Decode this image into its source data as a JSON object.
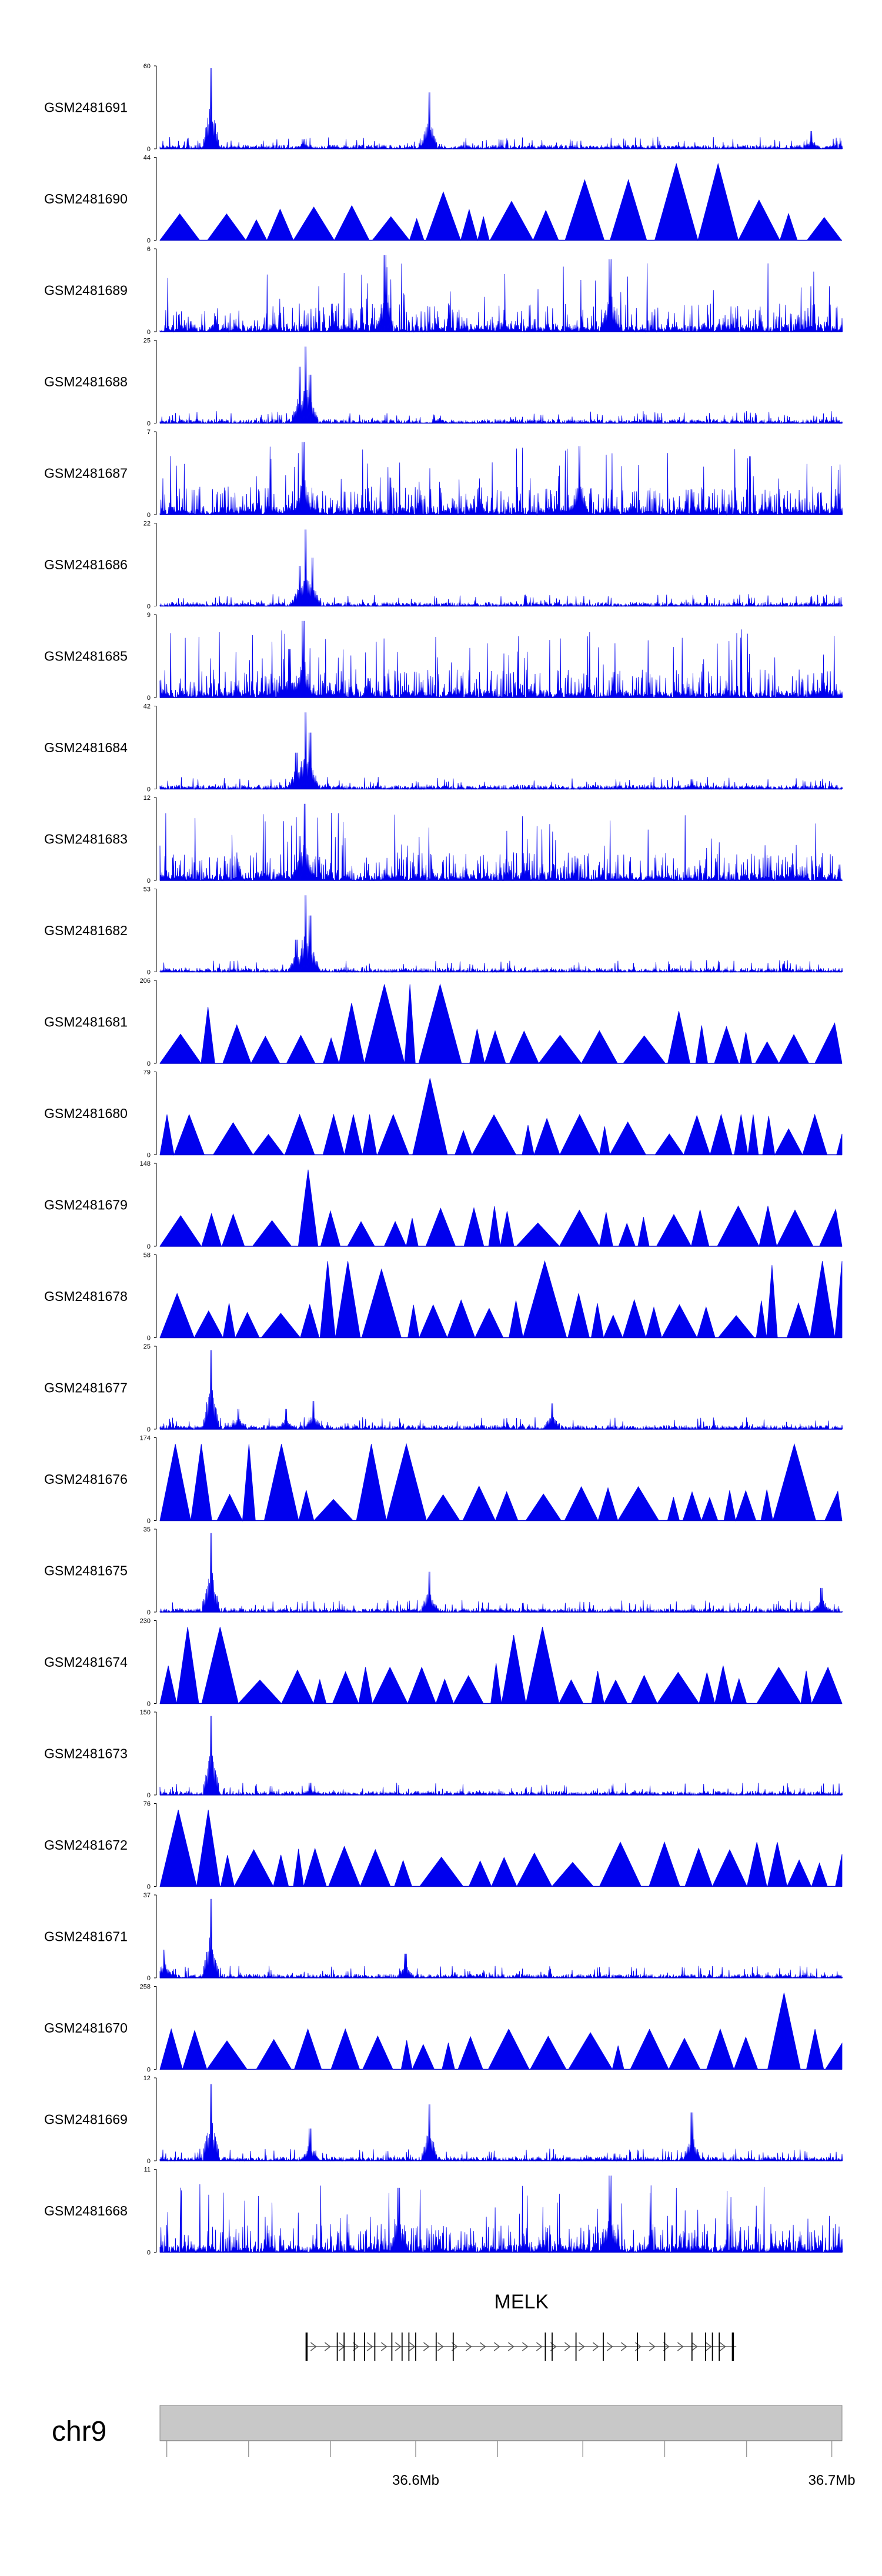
{
  "chart_data": {
    "type": "area",
    "title": "",
    "track_count": 24,
    "tracks": [
      {
        "name": "GSM2481691",
        "ymax": 60,
        "ymin": 0,
        "style": "dense",
        "peaks": [
          [
            0.075,
            1.0
          ],
          [
            0.395,
            0.7
          ],
          [
            0.955,
            0.22
          ],
          [
            0.21,
            0.12
          ]
        ]
      },
      {
        "name": "GSM2481690",
        "ymax": 44,
        "ymin": 0,
        "style": "triangles",
        "peaks": [
          [
            0.41,
            0.6
          ],
          [
            0.66,
            0.75
          ],
          [
            0.79,
            0.95
          ],
          [
            0.88,
            0.5
          ]
        ]
      },
      {
        "name": "GSM2481689",
        "ymax": 6,
        "ymin": 0,
        "style": "noisy",
        "peaks": [
          [
            0.33,
            0.95
          ],
          [
            0.66,
            0.9
          ]
        ]
      },
      {
        "name": "GSM2481688",
        "ymax": 25,
        "ymin": 0,
        "style": "dense",
        "peaks": [
          [
            0.213,
            0.95
          ],
          [
            0.205,
            0.7
          ],
          [
            0.22,
            0.6
          ]
        ]
      },
      {
        "name": "GSM2481687",
        "ymax": 7,
        "ymin": 0,
        "style": "noisy",
        "peaks": [
          [
            0.21,
            0.9
          ],
          [
            0.615,
            0.85
          ]
        ]
      },
      {
        "name": "GSM2481686",
        "ymax": 22,
        "ymin": 0,
        "style": "dense",
        "peaks": [
          [
            0.213,
            0.95
          ],
          [
            0.223,
            0.6
          ],
          [
            0.205,
            0.5
          ]
        ]
      },
      {
        "name": "GSM2481685",
        "ymax": 9,
        "ymin": 0,
        "style": "noisy",
        "peaks": [
          [
            0.21,
            0.95
          ],
          [
            0.19,
            0.6
          ]
        ]
      },
      {
        "name": "GSM2481684",
        "ymax": 42,
        "ymin": 0,
        "style": "dense",
        "peaks": [
          [
            0.213,
            0.95
          ],
          [
            0.22,
            0.7
          ],
          [
            0.2,
            0.45
          ],
          [
            0.78,
            0.12
          ]
        ]
      },
      {
        "name": "GSM2481683",
        "ymax": 12,
        "ymin": 0,
        "style": "noisy",
        "peaks": [
          [
            0.212,
            0.95
          ],
          [
            0.205,
            0.55
          ]
        ]
      },
      {
        "name": "GSM2481682",
        "ymax": 53,
        "ymin": 0,
        "style": "dense",
        "peaks": [
          [
            0.213,
            0.95
          ],
          [
            0.22,
            0.7
          ],
          [
            0.2,
            0.4
          ]
        ]
      },
      {
        "name": "GSM2481681",
        "ymax": 206,
        "ymin": 0,
        "style": "triangles",
        "peaks": [
          [
            0.075,
            0.7
          ],
          [
            0.125,
            0.35
          ],
          [
            0.305,
            0.75
          ],
          [
            0.335,
            0.35
          ],
          [
            0.37,
            0.98
          ],
          [
            0.505,
            0.35
          ],
          [
            0.56,
            0.35
          ],
          [
            0.63,
            0.35
          ],
          [
            0.78,
            0.65
          ],
          [
            0.83,
            0.35
          ]
        ]
      },
      {
        "name": "GSM2481680",
        "ymax": 79,
        "ymin": 0,
        "style": "triangles",
        "peaks": [
          [
            0.02,
            0.5
          ],
          [
            0.22,
            0.5
          ],
          [
            0.27,
            0.5
          ],
          [
            0.3,
            0.5
          ],
          [
            0.33,
            0.5
          ],
          [
            0.375,
            0.95
          ],
          [
            0.39,
            0.5
          ],
          [
            0.64,
            0.5
          ],
          [
            0.82,
            0.5
          ],
          [
            0.865,
            0.5
          ],
          [
            0.96,
            0.5
          ]
        ]
      },
      {
        "name": "GSM2481679",
        "ymax": 148,
        "ymin": 0,
        "style": "triangles",
        "peaks": [
          [
            0.05,
            0.25
          ],
          [
            0.085,
            0.4
          ],
          [
            0.215,
            0.95
          ],
          [
            0.235,
            0.3
          ],
          [
            0.38,
            0.25
          ],
          [
            0.7,
            0.25
          ],
          [
            0.79,
            0.45
          ],
          [
            0.89,
            0.5
          ]
        ]
      },
      {
        "name": "GSM2481678",
        "ymax": 58,
        "ymin": 0,
        "style": "triangles",
        "peaks": [
          [
            0.03,
            0.55
          ],
          [
            0.26,
            0.95
          ],
          [
            0.32,
            0.85
          ],
          [
            0.3,
            0.55
          ],
          [
            0.57,
            0.95
          ],
          [
            0.61,
            0.55
          ],
          [
            0.9,
            0.9
          ],
          [
            0.99,
            0.95
          ]
        ]
      },
      {
        "name": "GSM2481677",
        "ymax": 25,
        "ymin": 0,
        "style": "dense",
        "peaks": [
          [
            0.075,
            0.98
          ],
          [
            0.115,
            0.25
          ],
          [
            0.185,
            0.25
          ],
          [
            0.225,
            0.35
          ],
          [
            0.575,
            0.32
          ]
        ]
      },
      {
        "name": "GSM2481676",
        "ymax": 174,
        "ymin": 0,
        "style": "triangles",
        "peaks": [
          [
            0.05,
            0.95
          ],
          [
            0.14,
            0.95
          ],
          [
            0.185,
            0.95
          ],
          [
            0.33,
            0.95
          ],
          [
            0.93,
            0.95
          ]
        ]
      },
      {
        "name": "GSM2481675",
        "ymax": 35,
        "ymin": 0,
        "style": "dense",
        "peaks": [
          [
            0.075,
            0.98
          ],
          [
            0.395,
            0.5
          ],
          [
            0.97,
            0.3
          ]
        ]
      },
      {
        "name": "GSM2481674",
        "ymax": 230,
        "ymin": 0,
        "style": "triangles",
        "peaks": [
          [
            0.06,
            0.95
          ],
          [
            0.3,
            0.45
          ],
          [
            0.37,
            0.45
          ],
          [
            0.5,
            0.5
          ],
          [
            0.53,
            0.85
          ],
          [
            0.575,
            0.95
          ],
          [
            0.9,
            0.45
          ],
          [
            0.98,
            0.45
          ]
        ]
      },
      {
        "name": "GSM2481673",
        "ymax": 150,
        "ymin": 0,
        "style": "dense",
        "peaks": [
          [
            0.075,
            0.98
          ],
          [
            0.22,
            0.15
          ]
        ]
      },
      {
        "name": "GSM2481672",
        "ymax": 76,
        "ymin": 0,
        "style": "triangles",
        "peaks": [
          [
            0.05,
            0.95
          ],
          [
            0.08,
            0.55
          ],
          [
            0.67,
            0.55
          ],
          [
            0.73,
            0.55
          ],
          [
            0.89,
            0.55
          ]
        ]
      },
      {
        "name": "GSM2481671",
        "ymax": 37,
        "ymin": 0,
        "style": "dense",
        "peaks": [
          [
            0.075,
            0.98
          ],
          [
            0.007,
            0.35
          ],
          [
            0.36,
            0.3
          ]
        ]
      },
      {
        "name": "GSM2481670",
        "ymax": 258,
        "ymin": 0,
        "style": "triangles",
        "peaks": [
          [
            0.005,
            0.5
          ],
          [
            0.22,
            0.5
          ],
          [
            0.28,
            0.5
          ],
          [
            0.5,
            0.5
          ],
          [
            0.83,
            0.5
          ],
          [
            0.905,
            0.95
          ],
          [
            0.96,
            0.5
          ]
        ]
      },
      {
        "name": "GSM2481669",
        "ymax": 12,
        "ymin": 0,
        "style": "dense",
        "peaks": [
          [
            0.075,
            0.95
          ],
          [
            0.395,
            0.7
          ],
          [
            0.78,
            0.6
          ],
          [
            0.22,
            0.4
          ]
        ]
      },
      {
        "name": "GSM2481668",
        "ymax": 11,
        "ymin": 0,
        "style": "noisy",
        "peaks": [
          [
            0.66,
            0.95
          ],
          [
            0.35,
            0.8
          ]
        ]
      }
    ],
    "gene": {
      "name": "MELK",
      "strand": "+",
      "start_frac": 0.215,
      "end_frac": 0.845,
      "exons_frac": [
        0.215,
        0.26,
        0.27,
        0.285,
        0.3,
        0.315,
        0.34,
        0.355,
        0.365,
        0.375,
        0.405,
        0.43,
        0.565,
        0.575,
        0.61,
        0.65,
        0.7,
        0.74,
        0.78,
        0.8,
        0.81,
        0.82,
        0.84
      ]
    },
    "chromosome": "chr9",
    "x_axis": {
      "ticks_frac": [
        0.01,
        0.13,
        0.25,
        0.375,
        0.495,
        0.62,
        0.74,
        0.86,
        0.985
      ],
      "labeled": [
        {
          "frac": 0.375,
          "label": "36.6Mb"
        },
        {
          "frac": 0.985,
          "label": "36.7Mb"
        }
      ]
    }
  }
}
